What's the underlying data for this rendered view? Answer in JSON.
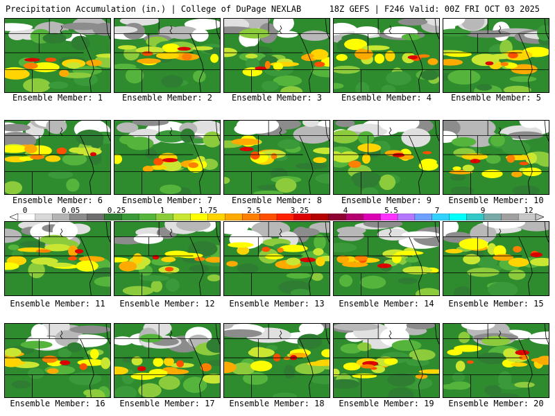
{
  "header": {
    "left_title": "Precipitation Accumulation (in.) | College of DuPage NEXLAB",
    "right_title": "18Z GEFS | F246 Valid: 00Z FRI OCT 03 2025"
  },
  "colorbar": {
    "tick_labels": [
      "0",
      "0.05",
      "0.25",
      "1",
      "1.75",
      "2.5",
      "3.25",
      "4",
      "5.5",
      "7",
      "9",
      "12"
    ],
    "colors": [
      "#ffffff",
      "#d8d8d8",
      "#b4b4b4",
      "#8c8c8c",
      "#6e6e6e",
      "#2e7d32",
      "#3a9a3a",
      "#55b43c",
      "#8ccc3c",
      "#c8e632",
      "#ffff00",
      "#ffd400",
      "#ffaa00",
      "#ff8000",
      "#ff5000",
      "#ff2000",
      "#dc0000",
      "#b40000",
      "#8c0032",
      "#b4006e",
      "#dc00b4",
      "#ff32ff",
      "#b478ff",
      "#6ea0ff",
      "#32d2ff",
      "#00ffff",
      "#32c8c8",
      "#78aaaa",
      "#a0a0a0",
      "#c8c8c8"
    ]
  },
  "panels": [
    {
      "caption": "Ensemble Member: 1"
    },
    {
      "caption": "Ensemble Member: 2"
    },
    {
      "caption": "Ensemble Member: 3"
    },
    {
      "caption": "Ensemble Member: 4"
    },
    {
      "caption": "Ensemble Member: 5"
    },
    {
      "caption": "Ensemble Member: 6"
    },
    {
      "caption": "Ensemble Member: 7"
    },
    {
      "caption": "Ensemble Member: 8"
    },
    {
      "caption": "Ensemble Member: 9"
    },
    {
      "caption": "Ensemble Member: 10"
    },
    {
      "caption": "Ensemble Member: 11"
    },
    {
      "caption": "Ensemble Member: 12"
    },
    {
      "caption": "Ensemble Member: 13"
    },
    {
      "caption": "Ensemble Member: 14"
    },
    {
      "caption": "Ensemble Member: 15"
    },
    {
      "caption": "Ensemble Member: 16"
    },
    {
      "caption": "Ensemble Member: 17"
    },
    {
      "caption": "Ensemble Member: 18"
    },
    {
      "caption": "Ensemble Member: 19"
    },
    {
      "caption": "Ensemble Member: 20"
    }
  ]
}
